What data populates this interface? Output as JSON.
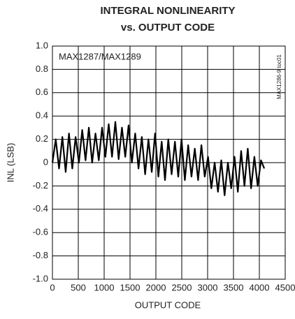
{
  "chart_data": {
    "type": "line",
    "title": "INTEGRAL NONLINEARITY",
    "subtitle": "vs. OUTPUT CODE",
    "x_label": "OUTPUT CODE",
    "y_label": "INL (LSB)",
    "annotation": "MAX1287/MAX1289",
    "figure_id": "MAX1286-9 toc01",
    "grid": true,
    "xlim": [
      0,
      4500
    ],
    "ylim": [
      -1,
      1
    ],
    "xticks": [
      0,
      500,
      1000,
      1500,
      2000,
      2500,
      3000,
      3500,
      4000,
      4500
    ],
    "yticks": [
      {
        "value": -1,
        "label": "-1.0"
      },
      -0.8,
      -0.6,
      -0.4,
      -0.2,
      0,
      0.2,
      0.4,
      0.6,
      0.8,
      {
        "value": 1,
        "label": "1.0"
      }
    ],
    "series": [
      {
        "color": "#000000",
        "x": [
          0,
          64,
          128,
          192,
          256,
          320,
          384,
          448,
          512,
          576,
          640,
          704,
          768,
          832,
          896,
          960,
          1024,
          1088,
          1152,
          1216,
          1280,
          1344,
          1408,
          1472,
          1536,
          1600,
          1664,
          1728,
          1792,
          1856,
          1920,
          1984,
          2048,
          2112,
          2176,
          2240,
          2304,
          2368,
          2432,
          2496,
          2560,
          2624,
          2688,
          2752,
          2816,
          2880,
          2944,
          3008,
          3072,
          3136,
          3200,
          3264,
          3328,
          3392,
          3456,
          3520,
          3584,
          3648,
          3712,
          3776,
          3840,
          3904,
          3968,
          4032,
          4095
        ],
        "values": [
          0,
          0.2,
          -0.05,
          0.22,
          -0.08,
          0.25,
          -0.05,
          0.22,
          0,
          0.28,
          0.02,
          0.3,
          0,
          0.25,
          0.02,
          0.3,
          0.05,
          0.33,
          0.05,
          0.35,
          0.03,
          0.3,
          0.05,
          0.32,
          0,
          0.25,
          -0.05,
          0.22,
          -0.1,
          0.2,
          -0.08,
          0.25,
          -0.12,
          0.18,
          -0.15,
          0.2,
          -0.1,
          0.18,
          -0.12,
          0.2,
          -0.15,
          0.15,
          -0.12,
          0.12,
          -0.15,
          0.15,
          -0.12,
          0.05,
          -0.22,
          0,
          -0.25,
          0.02,
          -0.28,
          0,
          -0.22,
          0.05,
          -0.25,
          0.1,
          -0.2,
          0.12,
          -0.22,
          0.05,
          -0.2,
          0.02,
          -0.05
        ]
      }
    ]
  }
}
